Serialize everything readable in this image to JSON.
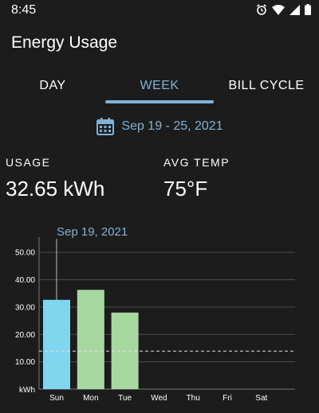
{
  "status_bar": {
    "time": "8:45",
    "icons": [
      "alarm-icon",
      "wifi-icon",
      "signal-icon",
      "battery-icon"
    ]
  },
  "header": {
    "title": "Energy Usage"
  },
  "tabs": [
    {
      "label": "DAY",
      "selected": false
    },
    {
      "label": "WEEK",
      "selected": true
    },
    {
      "label": "BILL CYCLE",
      "selected": false
    }
  ],
  "date_range": {
    "icon": "calendar-icon",
    "text": "Sep 19 - 25, 2021"
  },
  "stats": {
    "usage_label": "USAGE",
    "usage_value": "32.65 kWh",
    "temp_label": "AVG TEMP",
    "temp_value": "75°F"
  },
  "colors": {
    "accent": "#7fb2d6",
    "bar_selected": "#7fd6ee",
    "bar_default": "#a7d8a0",
    "background": "#1c1c1c"
  },
  "chart_data": {
    "type": "bar",
    "categories": [
      "Sun",
      "Mon",
      "Tue",
      "Wed",
      "Thu",
      "Fri",
      "Sat"
    ],
    "values": [
      32.65,
      36.3,
      28.0,
      null,
      null,
      null,
      null
    ],
    "selected_index": 0,
    "selected_label": "Sep 19, 2021",
    "y_ticks": [
      "50.00",
      "40.00",
      "30.00",
      "20.00",
      "10.00"
    ],
    "y_unit_label": "kWh",
    "ylim": [
      0,
      55
    ],
    "reference_value": 13.9,
    "grid": true
  }
}
